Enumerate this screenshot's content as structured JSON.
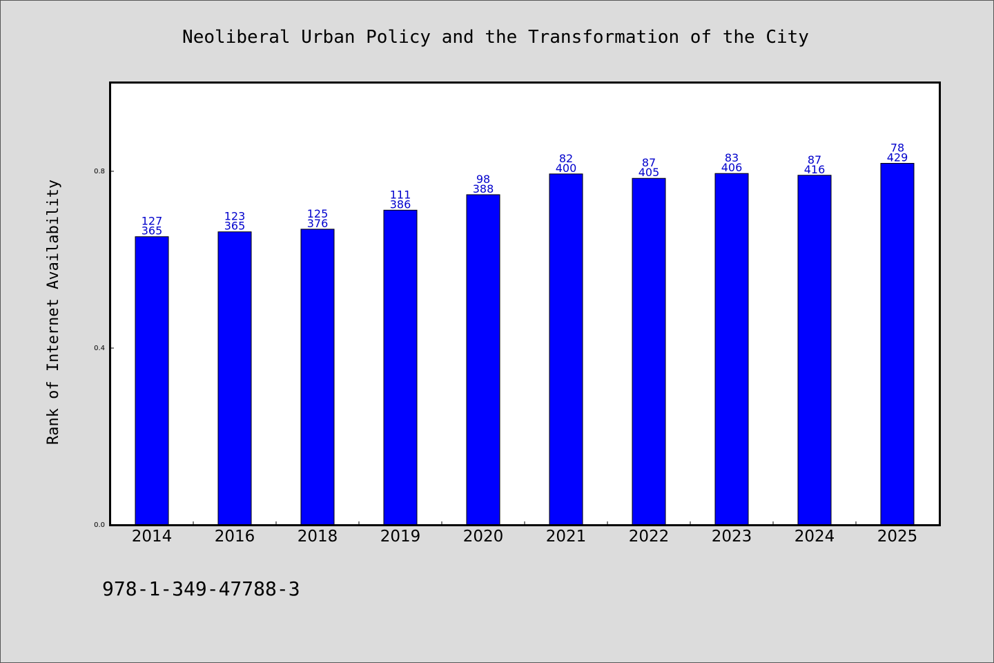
{
  "chart_data": {
    "type": "bar",
    "title": "Neoliberal Urban Policy and the Transformation of the City",
    "xlabel": "",
    "ylabel": "Rank of Internet Availability",
    "categories": [
      "2014",
      "2016",
      "2018",
      "2019",
      "2020",
      "2021",
      "2022",
      "2023",
      "2024",
      "2025"
    ],
    "values": [
      0.652,
      0.663,
      0.669,
      0.712,
      0.747,
      0.794,
      0.784,
      0.795,
      0.791,
      0.818
    ],
    "labels_top": [
      "127",
      "123",
      "125",
      "111",
      "98",
      "82",
      "87",
      "83",
      "87",
      "78"
    ],
    "labels_bottom": [
      "365",
      "365",
      "376",
      "386",
      "388",
      "400",
      "405",
      "406",
      "416",
      "429"
    ],
    "yticks": [
      "0.0",
      "0.4",
      "0.8"
    ],
    "ylim": [
      0,
      1.0
    ],
    "grid": false,
    "legend": "none",
    "colors": {
      "bar": "#0000ff",
      "bar_edge": "#000000",
      "data_label": "#0000cc",
      "background": "#dcdcdc",
      "plot_bg": "#ffffff"
    }
  },
  "footer": {
    "isbn": "978-1-349-47788-3"
  }
}
